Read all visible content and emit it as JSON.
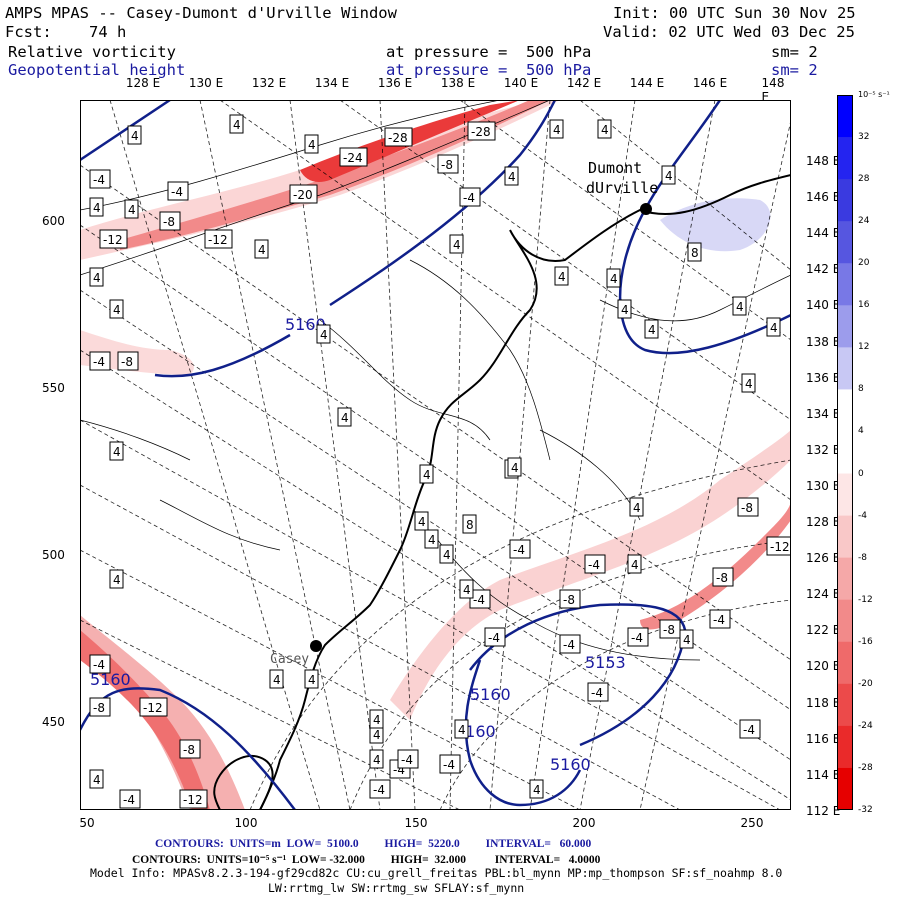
{
  "header": {
    "title": "AMPS MPAS -- Casey-Dumont d'Urville Window",
    "forecast": "Fcst:    74 h",
    "init": "Init: 00 UTC Sun 30 Nov 25",
    "valid": "Valid: 02 UTC Wed 03 Dec 25",
    "field1_name": "Relative vorticity",
    "field1_level": "at pressure =  500 hPa",
    "field1_sm": "sm= 2",
    "field2_name": "Geopotential height",
    "field2_level": "at pressure =  500 hPa",
    "field2_sm": "sm= 2"
  },
  "axes": {
    "top_longitudes": [
      "128 E",
      "130 E",
      "132 E",
      "134 E",
      "136 E",
      "138 E",
      "140 E",
      "142 E",
      "144 E",
      "146 E",
      "148 E"
    ],
    "left_ticks": [
      "600",
      "550",
      "500",
      "450"
    ],
    "bottom_ticks": [
      "50",
      "100",
      "150",
      "200",
      "250"
    ],
    "right_longitudes": [
      "148 E",
      "146 E",
      "144 E",
      "142 E",
      "140 E",
      "138 E",
      "136 E",
      "134 E",
      "132 E",
      "130 E",
      "128 E",
      "126 E",
      "124 E",
      "122 E",
      "120 E",
      "118 E",
      "116 E",
      "114 E",
      "112 E"
    ]
  },
  "colorbar": {
    "unit": "10⁻⁵ s⁻¹",
    "labels": [
      "32",
      "28",
      "24",
      "20",
      "16",
      "12",
      "8",
      "4",
      "0",
      "-4",
      "-8",
      "-12",
      "-16",
      "-20",
      "-24",
      "-28",
      "-32"
    ],
    "colors": [
      "#0000ff",
      "#2424f0",
      "#3a3ae0",
      "#5656e0",
      "#7878e6",
      "#9c9cec",
      "#c8c8f4",
      "#ffffff",
      "#ffffff",
      "#fde6e6",
      "#f9c8c8",
      "#f5a8a8",
      "#f28a8a",
      "#ef6a6a",
      "#ec4a4a",
      "#ea2a2a",
      "#e60000"
    ]
  },
  "map": {
    "stations": [
      "Dumont",
      "dUrville",
      "Casey"
    ],
    "height_labels": [
      "5160",
      "5160",
      "5160",
      "5160",
      "5153",
      "5160"
    ],
    "vort_labels": [
      "4",
      "-4",
      "-8",
      "-12",
      "-20",
      "-24",
      "-28",
      "8"
    ]
  },
  "footer": {
    "line1": "CONTOURS:  UNITS=m  LOW=  5100.0         HIGH=  5220.0         INTERVAL=   60.000",
    "line2": "CONTOURS:  UNITS=10⁻⁵ s⁻¹  LOW= -32.000         HIGH=  32.000          INTERVAL=   4.0000",
    "line3": "Model Info: MPASv8.2.3-194-gf29cd82c CU:cu_grell_freitas PBL:bl_mynn MP:mp_thompson SF:sf_noahmp 8.0",
    "line4": "LW:rrtmg_lw SW:rrtmg_sw SFLAY:sf_mynn"
  },
  "colors": {
    "height_contour": "#10208a",
    "neg_vort": "#e60000",
    "pos_vort": "#0000ff"
  }
}
